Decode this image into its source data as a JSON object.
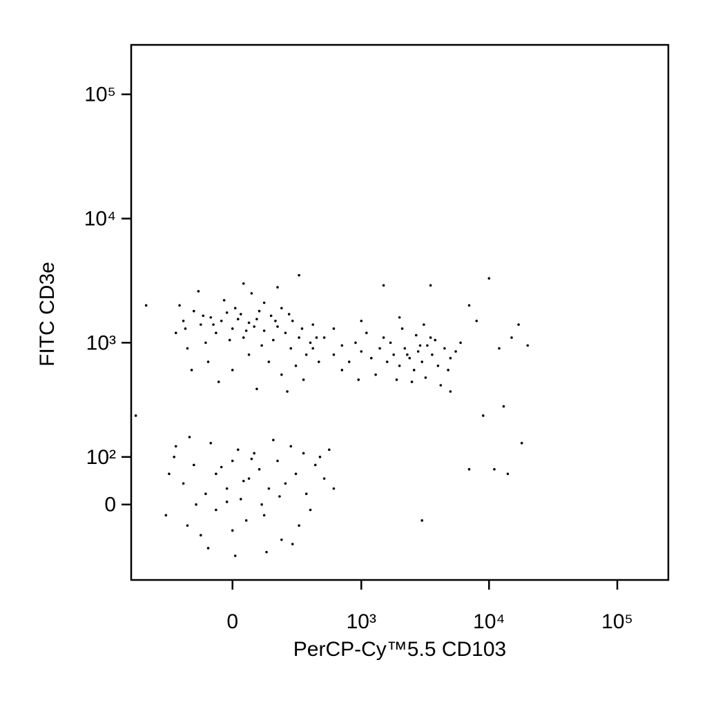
{
  "chart_data": {
    "type": "scatter",
    "xlabel": "PerCP-Cy™5.5 CD103",
    "ylabel": "FITC CD3e",
    "xscale": "biexponential",
    "yscale": "biexponential",
    "color": "#000000",
    "xlim": [
      -600,
      250000
    ],
    "ylim": [
      -190,
      250000
    ],
    "xticks": [
      0,
      {
        "value": 1000,
        "label": "10³"
      },
      {
        "value": 10000,
        "label": "10⁴"
      },
      {
        "value": 100000,
        "label": "10⁵"
      }
    ],
    "yticks": [
      0,
      {
        "value": 100,
        "label": "10²"
      },
      {
        "value": 1000,
        "label": "10³"
      },
      {
        "value": 10000,
        "label": "10⁴"
      },
      {
        "value": 100000,
        "label": "10⁵"
      }
    ],
    "x": [
      -120,
      -80,
      -40,
      0,
      30,
      60,
      90,
      120,
      -150,
      -60,
      10,
      40,
      -100,
      150,
      180,
      220,
      260,
      300,
      -200,
      -220,
      -30,
      70,
      120,
      200,
      250,
      320,
      380,
      -180,
      -90,
      0,
      60,
      140,
      200,
      280,
      350,
      -240,
      -20,
      20,
      80,
      -70,
      -10,
      110,
      160,
      400,
      450,
      -160,
      -50,
      90,
      230,
      330,
      -130,
      40,
      180,
      100,
      -110,
      50,
      170,
      240,
      -190,
      430,
      -200,
      -150,
      -100,
      -60,
      -20,
      0,
      30,
      60,
      100,
      140,
      180,
      220,
      280,
      350,
      420,
      500,
      600,
      -250,
      -300,
      -180,
      -120,
      -60,
      0,
      50,
      120,
      200,
      300,
      -240,
      -80,
      20,
      80,
      160,
      250,
      380,
      460,
      -140,
      -40,
      40,
      110,
      190,
      -280,
      -90,
      10,
      70,
      260,
      330,
      -170,
      130,
      550,
      -20,
      400,
      500,
      600,
      700,
      800,
      900,
      1000,
      1200,
      1400,
      1600,
      1800,
      2000,
      2200,
      2400,
      2600,
      2800,
      3000,
      3300,
      3600,
      4000,
      4500,
      5000,
      1100,
      1500,
      2100,
      2700,
      3500,
      1300,
      1900,
      2500,
      3200,
      4200,
      700,
      950,
      600,
      1700,
      2300,
      2900,
      3800,
      5500,
      1000,
      2000,
      3100,
      4800,
      6000,
      8000,
      10000,
      12000,
      15000,
      20000,
      17000,
      7000,
      5000,
      9000,
      13000,
      18000,
      14000,
      7000,
      3000,
      1500,
      3500,
      -550,
      -450,
      300,
      11000
    ],
    "y": [
      1400,
      1600,
      1500,
      1300,
      1700,
      1450,
      1550,
      1250,
      1800,
      1200,
      1900,
      1100,
      1000,
      1650,
      1350,
      1200,
      1500,
      1100,
      1500,
      2000,
      2200,
      2500,
      2100,
      1900,
      900,
      1300,
      1000,
      900,
      700,
      600,
      800,
      700,
      550,
      650,
      800,
      1200,
      1750,
      1550,
      1350,
      1400,
      1050,
      950,
      1050,
      1400,
      700,
      600,
      480,
      420,
      400,
      500,
      2600,
      3000,
      2800,
      1800,
      1650,
      1250,
      1500,
      1700,
      1300,
      1100,
      40,
      80,
      20,
      60,
      30,
      90,
      10,
      50,
      70,
      30,
      90,
      40,
      60,
      20,
      80,
      50,
      30,
      100,
      -20,
      -40,
      -60,
      -10,
      -50,
      -30,
      -20,
      -70,
      -40,
      130,
      140,
      120,
      110,
      150,
      130,
      -10,
      100,
      0,
      75,
      45,
      0,
      15,
      60,
      -90,
      -110,
      95,
      -80,
      110,
      160,
      -100,
      120,
      5,
      900,
      1100,
      800,
      950,
      700,
      1000,
      850,
      750,
      900,
      700,
      800,
      650,
      900,
      750,
      600,
      850,
      700,
      950,
      800,
      650,
      900,
      750,
      1200,
      1100,
      1300,
      1150,
      1100,
      550,
      500,
      480,
      520,
      450,
      600,
      500,
      1300,
      1000,
      800,
      950,
      1050,
      850,
      1500,
      1600,
      1400,
      600,
      1000,
      1500,
      3300,
      900,
      1100,
      950,
      1400,
      2000,
      400,
      250,
      300,
      140,
      60,
      70,
      -30,
      2900,
      2900,
      250,
      2000,
      3500,
      70
    ]
  }
}
